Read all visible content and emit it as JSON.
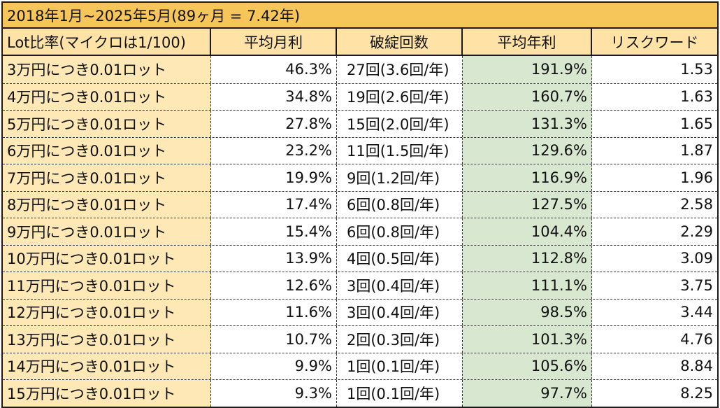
{
  "title": "2018年1月~2025年5月(89ヶ月 = 7.42年)",
  "headers": {
    "lot_ratio": "Lot比率(マイクロは1/100)",
    "avg_monthly": "平均月利",
    "bust_count": "破綻回数",
    "avg_annual": "平均年利",
    "risk_reward": "リスクワード"
  },
  "rows": [
    {
      "lot": "3万円につき0.01ロット",
      "monthly": "46.3%",
      "bust": "27回(3.6回/年)",
      "annual": "191.9%",
      "rr": "1.53"
    },
    {
      "lot": "4万円につき0.01ロット",
      "monthly": "34.8%",
      "bust": "19回(2.6回/年)",
      "annual": "160.7%",
      "rr": "1.63"
    },
    {
      "lot": "5万円につき0.01ロット",
      "monthly": "27.8%",
      "bust": "15回(2.0回/年)",
      "annual": "131.3%",
      "rr": "1.65"
    },
    {
      "lot": "6万円につき0.01ロット",
      "monthly": "23.2%",
      "bust": "11回(1.5回/年)",
      "annual": "129.6%",
      "rr": "1.87"
    },
    {
      "lot": "7万円につき0.01ロット",
      "monthly": "19.9%",
      "bust": "9回(1.2回/年)",
      "annual": "116.9%",
      "rr": "1.96"
    },
    {
      "lot": "8万円につき0.01ロット",
      "monthly": "17.4%",
      "bust": "6回(0.8回/年)",
      "annual": "127.5%",
      "rr": "2.58"
    },
    {
      "lot": "9万円につき0.01ロット",
      "monthly": "15.4%",
      "bust": "6回(0.8回/年)",
      "annual": "104.4%",
      "rr": "2.29"
    },
    {
      "lot": "10万円につき0.01ロット",
      "monthly": "13.9%",
      "bust": "4回(0.5回/年)",
      "annual": "112.8%",
      "rr": "3.09"
    },
    {
      "lot": "11万円につき0.01ロット",
      "monthly": "12.6%",
      "bust": "3回(0.4回/年)",
      "annual": "111.1%",
      "rr": "3.75"
    },
    {
      "lot": "12万円につき0.01ロット",
      "monthly": "11.6%",
      "bust": "3回(0.4回/年)",
      "annual": "98.5%",
      "rr": "3.44"
    },
    {
      "lot": "13万円につき0.01ロット",
      "monthly": "10.7%",
      "bust": "2回(0.3回/年)",
      "annual": "101.3%",
      "rr": "4.76"
    },
    {
      "lot": "14万円につき0.01ロット",
      "monthly": "9.9%",
      "bust": "1回(0.1回/年)",
      "annual": "105.6%",
      "rr": "8.84"
    },
    {
      "lot": "15万円につき0.01ロット",
      "monthly": "9.3%",
      "bust": "1回(0.1回/年)",
      "annual": "97.7%",
      "rr": "8.25"
    }
  ]
}
